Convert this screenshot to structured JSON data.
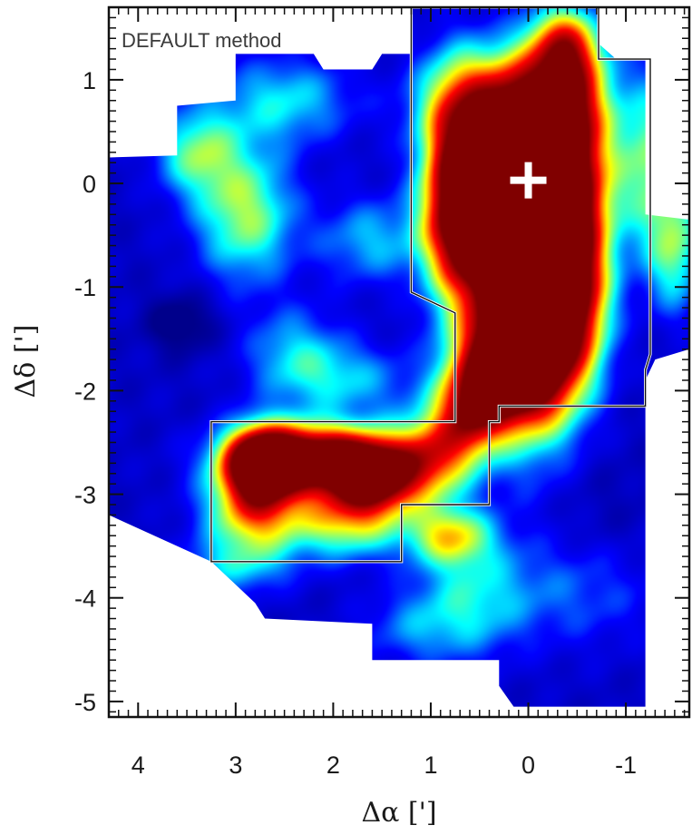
{
  "chart_data": {
    "type": "heatmap",
    "panel_label": "DEFAULT method",
    "xlabel": "Δα [']",
    "ylabel": "Δδ [']",
    "xlim": [
      4.3,
      -1.65
    ],
    "ylim": [
      -5.15,
      1.7
    ],
    "x_ticks": [
      4,
      3,
      2,
      1,
      0,
      -1
    ],
    "y_ticks": [
      1,
      0,
      -1,
      -2,
      -3,
      -4,
      -5
    ],
    "x_tick_labels": [
      "4",
      "3",
      "2",
      "1",
      "0",
      "-1"
    ],
    "y_tick_labels": [
      "1",
      "0",
      "-1",
      "-2",
      "-3",
      "-4",
      "-5"
    ],
    "colormap": [
      "#00008b",
      "#0000ff",
      "#00ffff",
      "#ffff00",
      "#ff0000",
      "#800000"
    ],
    "marker": {
      "type": "cross",
      "x": 0.0,
      "y": 0.03,
      "color": "#ffffff"
    },
    "coverage_polygon": [
      [
        3.0,
        1.25
      ],
      [
        2.2,
        1.25
      ],
      [
        2.1,
        1.1
      ],
      [
        1.6,
        1.1
      ],
      [
        1.5,
        1.25
      ],
      [
        1.2,
        1.25
      ],
      [
        1.2,
        1.7
      ],
      [
        -0.72,
        1.7
      ],
      [
        -0.72,
        1.35
      ],
      [
        -0.9,
        1.2
      ],
      [
        -1.2,
        1.2
      ],
      [
        -1.2,
        -0.3
      ],
      [
        -1.65,
        -0.35
      ],
      [
        -1.65,
        -1.6
      ],
      [
        -1.3,
        -1.7
      ],
      [
        -1.2,
        -1.9
      ],
      [
        -1.2,
        -5.05
      ],
      [
        0.15,
        -5.05
      ],
      [
        0.3,
        -4.85
      ],
      [
        0.3,
        -4.6
      ],
      [
        1.6,
        -4.6
      ],
      [
        1.6,
        -4.25
      ],
      [
        2.7,
        -4.2
      ],
      [
        2.8,
        -4.05
      ],
      [
        3.25,
        -3.65
      ],
      [
        4.3,
        -3.2
      ],
      [
        4.3,
        0.25
      ],
      [
        3.6,
        0.27
      ],
      [
        3.6,
        0.75
      ],
      [
        3.0,
        0.8
      ]
    ],
    "contour_regions": [
      [
        [
          1.2,
          1.7
        ],
        [
          -0.72,
          1.7
        ],
        [
          -0.72,
          1.2
        ],
        [
          -1.25,
          1.2
        ],
        [
          -1.25,
          -1.65
        ],
        [
          -1.2,
          -1.8
        ],
        [
          -1.2,
          -2.15
        ],
        [
          0.3,
          -2.15
        ],
        [
          0.3,
          -2.3
        ],
        [
          0.4,
          -2.3
        ],
        [
          0.4,
          -3.1
        ],
        [
          1.3,
          -3.1
        ],
        [
          1.3,
          -3.65
        ],
        [
          3.25,
          -3.65
        ],
        [
          3.25,
          -2.3
        ],
        [
          0.75,
          -2.3
        ],
        [
          0.75,
          -1.25
        ],
        [
          1.2,
          -1.05
        ]
      ]
    ],
    "emission_blobs": [
      {
        "x": -0.05,
        "y": -0.85,
        "sx": 0.35,
        "sy": 0.95,
        "amp": 1.55
      },
      {
        "x": 0.35,
        "y": -0.3,
        "sx": 0.3,
        "sy": 0.55,
        "amp": 1.1
      },
      {
        "x": 0.75,
        "y": -0.1,
        "sx": 0.25,
        "sy": 0.7,
        "amp": 0.95
      },
      {
        "x": -0.25,
        "y": 0.05,
        "sx": 0.35,
        "sy": 0.45,
        "amp": 1.0
      },
      {
        "x": 0.2,
        "y": -1.75,
        "sx": 0.35,
        "sy": 0.35,
        "amp": 1.1
      },
      {
        "x": -0.5,
        "y": -1.0,
        "sx": 0.25,
        "sy": 0.6,
        "amp": 0.7
      },
      {
        "x": 0.2,
        "y": 0.8,
        "sx": 0.55,
        "sy": 0.35,
        "amp": 0.7
      },
      {
        "x": -0.45,
        "y": 0.9,
        "sx": 0.25,
        "sy": 0.45,
        "amp": 0.55
      },
      {
        "x": -0.35,
        "y": 1.35,
        "sx": 0.25,
        "sy": 0.25,
        "amp": 0.5
      },
      {
        "x": 2.2,
        "y": -2.65,
        "sx": 0.55,
        "sy": 0.22,
        "amp": 1.25
      },
      {
        "x": 1.6,
        "y": -2.85,
        "sx": 0.3,
        "sy": 0.22,
        "amp": 0.95
      },
      {
        "x": 2.75,
        "y": -2.7,
        "sx": 0.25,
        "sy": 0.25,
        "amp": 0.9
      },
      {
        "x": 2.8,
        "y": -3.15,
        "sx": 0.35,
        "sy": 0.3,
        "amp": 0.65
      },
      {
        "x": 1.85,
        "y": -3.25,
        "sx": 0.4,
        "sy": 0.25,
        "amp": 0.55
      },
      {
        "x": 1.0,
        "y": -2.65,
        "sx": 0.3,
        "sy": 0.3,
        "amp": 0.65
      },
      {
        "x": 0.6,
        "y": -2.2,
        "sx": 0.25,
        "sy": 0.3,
        "amp": 0.75
      },
      {
        "x": 0.8,
        "y": -3.4,
        "sx": 0.3,
        "sy": 0.2,
        "amp": 0.5
      },
      {
        "x": 2.9,
        "y": -0.3,
        "sx": 0.35,
        "sy": 0.45,
        "amp": 0.48
      },
      {
        "x": 3.4,
        "y": 0.3,
        "sx": 0.3,
        "sy": 0.3,
        "amp": 0.4
      },
      {
        "x": 2.5,
        "y": 0.8,
        "sx": 0.5,
        "sy": 0.3,
        "amp": 0.32
      },
      {
        "x": 1.6,
        "y": -0.55,
        "sx": 0.4,
        "sy": 0.3,
        "amp": 0.28
      },
      {
        "x": 2.4,
        "y": -1.6,
        "sx": 0.35,
        "sy": 0.3,
        "amp": 0.25
      },
      {
        "x": 1.9,
        "y": -1.9,
        "sx": 0.5,
        "sy": 0.25,
        "amp": 0.28
      },
      {
        "x": 0.6,
        "y": -4.0,
        "sx": 0.4,
        "sy": 0.4,
        "amp": 0.3
      },
      {
        "x": -0.5,
        "y": -3.9,
        "sx": 0.6,
        "sy": 0.4,
        "amp": 0.22
      },
      {
        "x": 1.2,
        "y": -4.3,
        "sx": 0.4,
        "sy": 0.25,
        "amp": 0.18
      },
      {
        "x": 3.0,
        "y": -3.7,
        "sx": 0.4,
        "sy": 0.2,
        "amp": 0.25
      },
      {
        "x": -1.3,
        "y": 0.2,
        "sx": 0.3,
        "sy": 0.6,
        "amp": 0.45
      },
      {
        "x": -1.5,
        "y": -0.7,
        "sx": 0.2,
        "sy": 0.4,
        "amp": 0.35
      },
      {
        "x": 3.55,
        "y": -1.35,
        "sx": 0.25,
        "sy": 0.2,
        "amp": -0.18
      },
      {
        "x": -0.6,
        "y": -3.4,
        "sx": 0.5,
        "sy": 0.5,
        "amp": -0.08
      }
    ],
    "background_level": 0.12,
    "color_scale_max": 1.15,
    "grid": false
  }
}
